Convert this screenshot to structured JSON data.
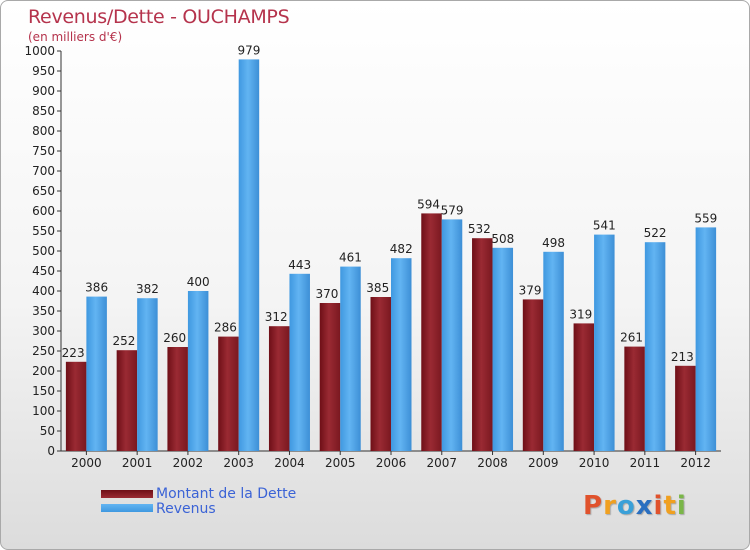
{
  "title": "Revenus/Dette - OUCHAMPS",
  "subtitle": "(en milliers d'€)",
  "colors": {
    "dette": "#8b1a22",
    "revenus": "#4aa3e8",
    "title": "#b5334c",
    "legend_text": "#3b63d6"
  },
  "legend": {
    "dette_label": "Montant de la Dette",
    "revenus_label": "Revenus"
  },
  "logo": {
    "text": "Proxiti",
    "letters": [
      "P",
      "r",
      "o",
      "x",
      "i",
      "t",
      "i"
    ],
    "letter_colors": [
      "#e0522c",
      "#f0a020",
      "#3aa0d8",
      "#2a6fc0",
      "#e0522c",
      "#f0a020",
      "#7ab648"
    ]
  },
  "chart_data": {
    "type": "bar",
    "categories": [
      "2000",
      "2001",
      "2002",
      "2003",
      "2004",
      "2005",
      "2006",
      "2007",
      "2008",
      "2009",
      "2010",
      "2011",
      "2012"
    ],
    "series": [
      {
        "name": "Montant de la Dette",
        "values": [
          223,
          252,
          260,
          286,
          312,
          370,
          385,
          594,
          532,
          379,
          319,
          261,
          213
        ]
      },
      {
        "name": "Revenus",
        "values": [
          386,
          382,
          400,
          979,
          443,
          461,
          482,
          579,
          508,
          498,
          541,
          522,
          559
        ]
      }
    ],
    "ylim": [
      0,
      1000
    ],
    "yticks": [
      0,
      50,
      100,
      150,
      200,
      250,
      300,
      350,
      400,
      450,
      500,
      550,
      600,
      650,
      700,
      750,
      800,
      850,
      900,
      950,
      1000
    ],
    "grid": false,
    "legend_position": "bottom-left"
  }
}
